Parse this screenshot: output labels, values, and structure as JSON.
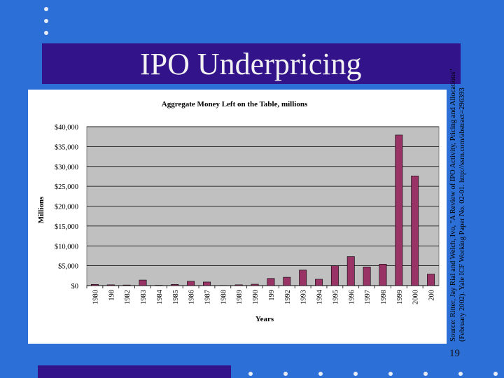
{
  "slide": {
    "title": "IPO Underpricing",
    "source": "Source: Ritter, Jay Rial and Welch, Ivo, \"A Review of IPO Activity, Pricing and Allocations\" (February 2002). Yale ICF Working Paper No. 02-01. http://ssrn.com/abstract=296393",
    "page_number": "19"
  },
  "colors": {
    "background": "#2c6fd6",
    "title_band": "#33138a",
    "bar": "#993366",
    "plot_area": "#c0c0c0"
  },
  "chart_data": {
    "type": "bar",
    "title": "Aggregate Money Left on the Table, millions",
    "xlabel": "Years",
    "ylabel": "Millions",
    "categories": [
      "1980",
      "198",
      "1982",
      "1983",
      "1984",
      "1985",
      "1986",
      "1987",
      "1988",
      "1989",
      "1990",
      "199",
      "1992",
      "1993",
      "1994",
      "1995",
      "1996",
      "1997",
      "1998",
      "1999",
      "2000",
      "200"
    ],
    "values": [
      300,
      200,
      150,
      1400,
      80,
      300,
      1100,
      900,
      50,
      200,
      350,
      1800,
      2100,
      3900,
      1600,
      5000,
      7300,
      4700,
      5400,
      37900,
      27600,
      2900
    ],
    "ylim": [
      0,
      40000
    ],
    "y_ticks": [
      "$0",
      "$5,000",
      "$10,000",
      "$15,000",
      "$20,000",
      "$25,000",
      "$30,000",
      "$35,000",
      "$40,000"
    ],
    "grid": true,
    "legend": "none"
  }
}
